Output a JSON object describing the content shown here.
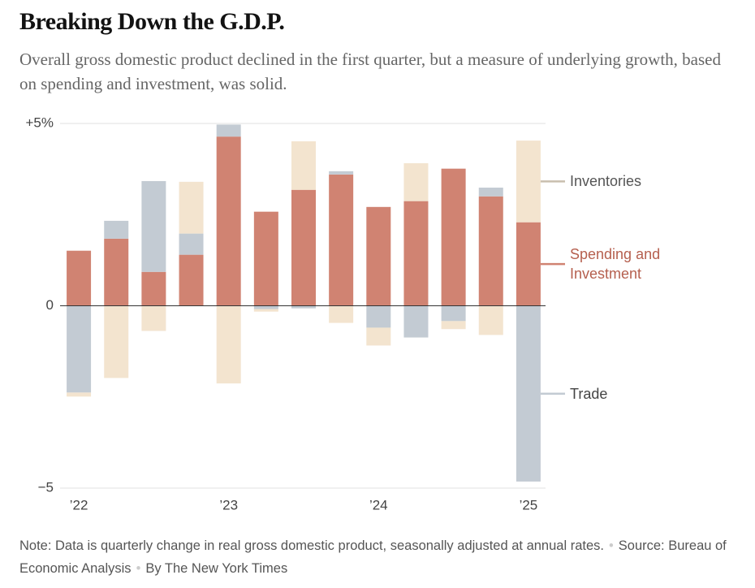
{
  "chart_data": {
    "type": "stacked_bar",
    "title": "Breaking Down the G.D.P.",
    "subtitle": "Overall gross domestic product declined in the first quarter, but a measure of underlying growth, based on spending and investment, was solid.",
    "categories": [
      "’22",
      null,
      null,
      null,
      "’23",
      null,
      null,
      null,
      "’24",
      null,
      null,
      null,
      "’25"
    ],
    "series": [
      {
        "name": "Spending and Investment",
        "color": "#d08372",
        "label_color": "#b55f4e",
        "values": [
          1.51,
          1.84,
          0.93,
          1.4,
          4.64,
          2.58,
          3.18,
          3.6,
          2.71,
          2.87,
          3.76,
          3.0,
          2.29
        ]
      },
      {
        "name": "Trade",
        "color": "#c3cbd3",
        "label_color": "#444444",
        "values": [
          -2.38,
          0.49,
          2.49,
          0.58,
          0.33,
          -0.09,
          -0.07,
          0.09,
          -0.6,
          -0.87,
          -0.42,
          0.24,
          -4.82
        ]
      },
      {
        "name": "Inventories",
        "color": "#f3e4cf",
        "label_color": "#555555",
        "values": [
          -0.11,
          -1.98,
          -0.69,
          1.42,
          -2.13,
          -0.07,
          1.33,
          -0.47,
          -0.49,
          1.04,
          -0.22,
          -0.8,
          2.24
        ]
      }
    ],
    "ylim": [
      -5,
      5
    ],
    "yticks": [
      {
        "value": 5,
        "label": "+5%"
      },
      0,
      {
        "value": -5,
        "label": "−5"
      }
    ],
    "grid": true,
    "note": "Note: Data is quarterly change in real gross domestic product, seasonally adjusted at annual rates.",
    "source": "Source: Bureau of Economic Analysis",
    "byline": "By The New York Times"
  }
}
